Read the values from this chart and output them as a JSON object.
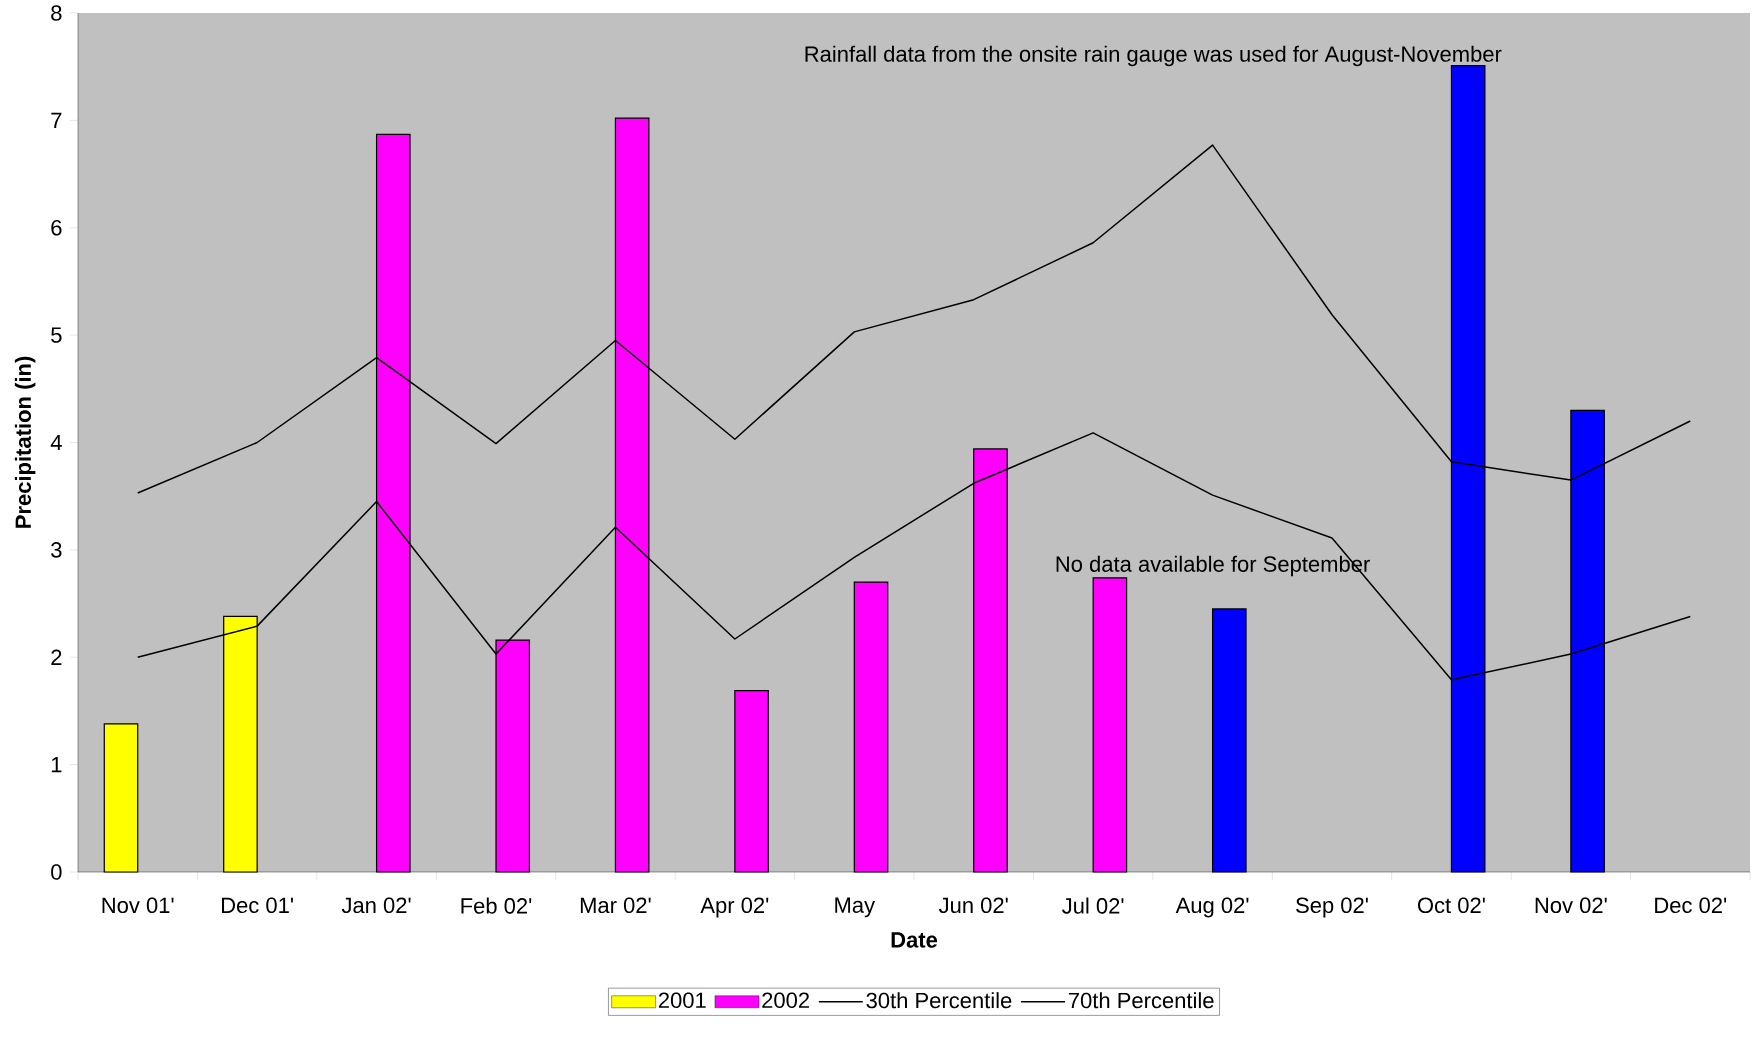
{
  "chart_data": {
    "type": "bar",
    "xlabel": "Date",
    "ylabel": "Precipitation (in)",
    "categories": [
      "Nov 01'",
      "Dec 01'",
      "Jan 02'",
      "Feb 02'",
      "Mar 02'",
      "Apr 02'",
      "May",
      "Jun 02'",
      "Jul 02'",
      "Aug 02'",
      "Sep 02'",
      "Oct 02'",
      "Nov 02'",
      "Dec 02'"
    ],
    "series": [
      {
        "name": "2001",
        "color": "#ffff00",
        "values": [
          1.38,
          2.38,
          null,
          null,
          null,
          null,
          null,
          null,
          null,
          null,
          null,
          null,
          null,
          null
        ]
      },
      {
        "name": "2002",
        "color": "#ff00ff",
        "colors": [
          "#ff00ff",
          "#ff00ff",
          "#ff00ff",
          "#ff00ff",
          "#ff00ff",
          "#ff00ff",
          "#ff00ff",
          "#ff00ff",
          "#ff00ff",
          "#0000ff",
          "#0000ff",
          "#0000ff",
          "#0000ff",
          "#0000ff"
        ],
        "values": [
          null,
          null,
          6.87,
          2.16,
          7.02,
          1.69,
          2.7,
          3.94,
          2.74,
          2.45,
          null,
          7.51,
          4.3,
          null
        ]
      },
      {
        "name": "30th Percentile",
        "type": "line",
        "color": "#000000",
        "values": [
          2.0,
          2.29,
          3.45,
          2.03,
          3.21,
          2.17,
          2.93,
          3.62,
          4.09,
          3.51,
          3.11,
          1.79,
          2.03,
          2.38
        ]
      },
      {
        "name": "70th Percentile",
        "type": "line",
        "color": "#000000",
        "values": [
          3.53,
          4.0,
          4.79,
          3.99,
          4.95,
          4.03,
          5.03,
          5.33,
          5.86,
          6.77,
          5.19,
          3.82,
          3.65,
          4.2
        ]
      }
    ],
    "ylim": [
      0,
      8
    ],
    "yticks": [
      0,
      1,
      2,
      3,
      4,
      5,
      6,
      7,
      8
    ],
    "legend": "bottom",
    "annotations": [
      "Rainfall data from the onsite rain gauge was used for August-November",
      "No data available for September"
    ]
  }
}
